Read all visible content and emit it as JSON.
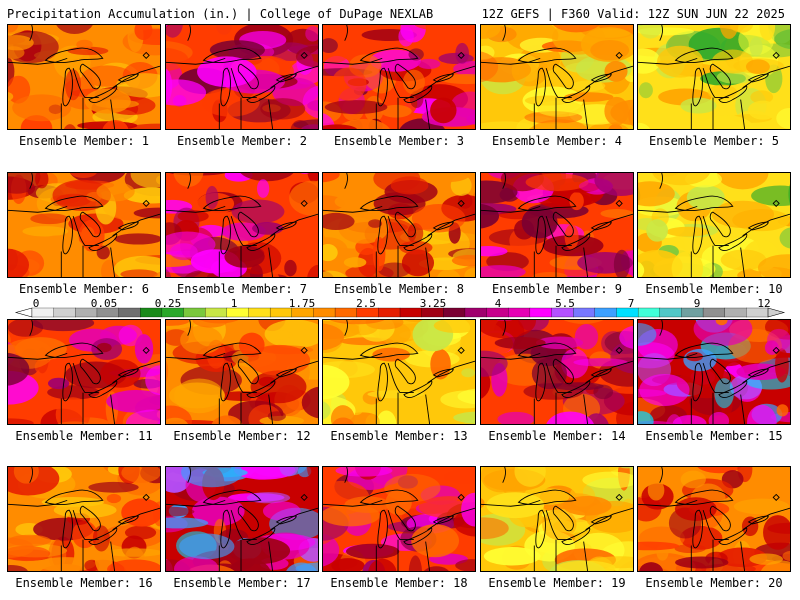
{
  "header": {
    "left_title": "Precipitation Accumulation (in.) | College of DuPage NEXLAB",
    "right_title": "12Z GEFS | F360 Valid: 12Z SUN JUN 22 2025"
  },
  "legend": {
    "tick_labels": [
      "0",
      "0.05",
      "0.25",
      "1",
      "1.75",
      "2.5",
      "3.25",
      "4",
      "5.5",
      "7",
      "9",
      "12"
    ],
    "colors": [
      "#f0f0f0",
      "#d0d0d0",
      "#b0b0b0",
      "#909090",
      "#707070",
      "#1a8a1a",
      "#2aa82a",
      "#7ac83c",
      "#c8e646",
      "#ffff33",
      "#ffe01a",
      "#ffc80a",
      "#ffa500",
      "#ff8c00",
      "#ff6a00",
      "#ff3c00",
      "#e61e00",
      "#c80000",
      "#a00014",
      "#7a0032",
      "#a0006e",
      "#c8008c",
      "#e600b4",
      "#ff00ff",
      "#b450ff",
      "#7878ff",
      "#3ca0ff",
      "#00e0ff",
      "#40ffd8",
      "#50c8c8",
      "#70a0a0",
      "#909090",
      "#b0b0b0",
      "#d0d0d0"
    ]
  },
  "members": [
    {
      "label": "Ensemble Member: 1"
    },
    {
      "label": "Ensemble Member: 2"
    },
    {
      "label": "Ensemble Member: 3"
    },
    {
      "label": "Ensemble Member: 4"
    },
    {
      "label": "Ensemble Member: 5"
    },
    {
      "label": "Ensemble Member: 6"
    },
    {
      "label": "Ensemble Member: 7"
    },
    {
      "label": "Ensemble Member: 8"
    },
    {
      "label": "Ensemble Member: 9"
    },
    {
      "label": "Ensemble Member: 10"
    },
    {
      "label": "Ensemble Member: 11"
    },
    {
      "label": "Ensemble Member: 12"
    },
    {
      "label": "Ensemble Member: 13"
    },
    {
      "label": "Ensemble Member: 14"
    },
    {
      "label": "Ensemble Member: 15"
    },
    {
      "label": "Ensemble Member: 16"
    },
    {
      "label": "Ensemble Member: 17"
    },
    {
      "label": "Ensemble Member: 18"
    },
    {
      "label": "Ensemble Member: 19"
    },
    {
      "label": "Ensemble Member: 20"
    }
  ]
}
